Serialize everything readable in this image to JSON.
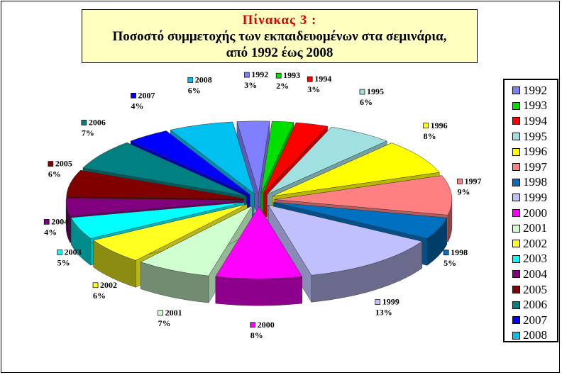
{
  "title": {
    "line1": "Πίνακας 3 :",
    "line2": "Ποσοστό συμμετοχής των εκπαιδευομένων στα σεμινάρια,",
    "line3": "από 1992 έως 2008"
  },
  "chart_data": {
    "type": "pie",
    "title": "Πίνακας 3 : Ποσοστό συμμετοχής των εκπαιδευομένων στα σεμινάρια, από 1992 έως 2008",
    "categories": [
      "1992",
      "1993",
      "1994",
      "1995",
      "1996",
      "1997",
      "1998",
      "1999",
      "2000",
      "2001",
      "2002",
      "2003",
      "2004",
      "2005",
      "2006",
      "2007",
      "2008"
    ],
    "values": [
      3,
      2,
      3,
      6,
      8,
      9,
      5,
      13,
      8,
      7,
      6,
      5,
      4,
      6,
      7,
      4,
      6
    ],
    "labels": [
      "3%",
      "2%",
      "3%",
      "6%",
      "8%",
      "9%",
      "5%",
      "13%",
      "8%",
      "7%",
      "6%",
      "5%",
      "4%",
      "6%",
      "7%",
      "4%",
      "6%"
    ],
    "colors": [
      "#8080ff",
      "#00e000",
      "#ff0000",
      "#a0e0e0",
      "#ffff00",
      "#ff8080",
      "#0070c0",
      "#c0c0ff",
      "#ff00ff",
      "#d0ffd0",
      "#ffff20",
      "#00ffff",
      "#800080",
      "#800000",
      "#008080",
      "#0000ff",
      "#00c0f0"
    ],
    "legend_position": "right",
    "style": "3d-exploded"
  }
}
